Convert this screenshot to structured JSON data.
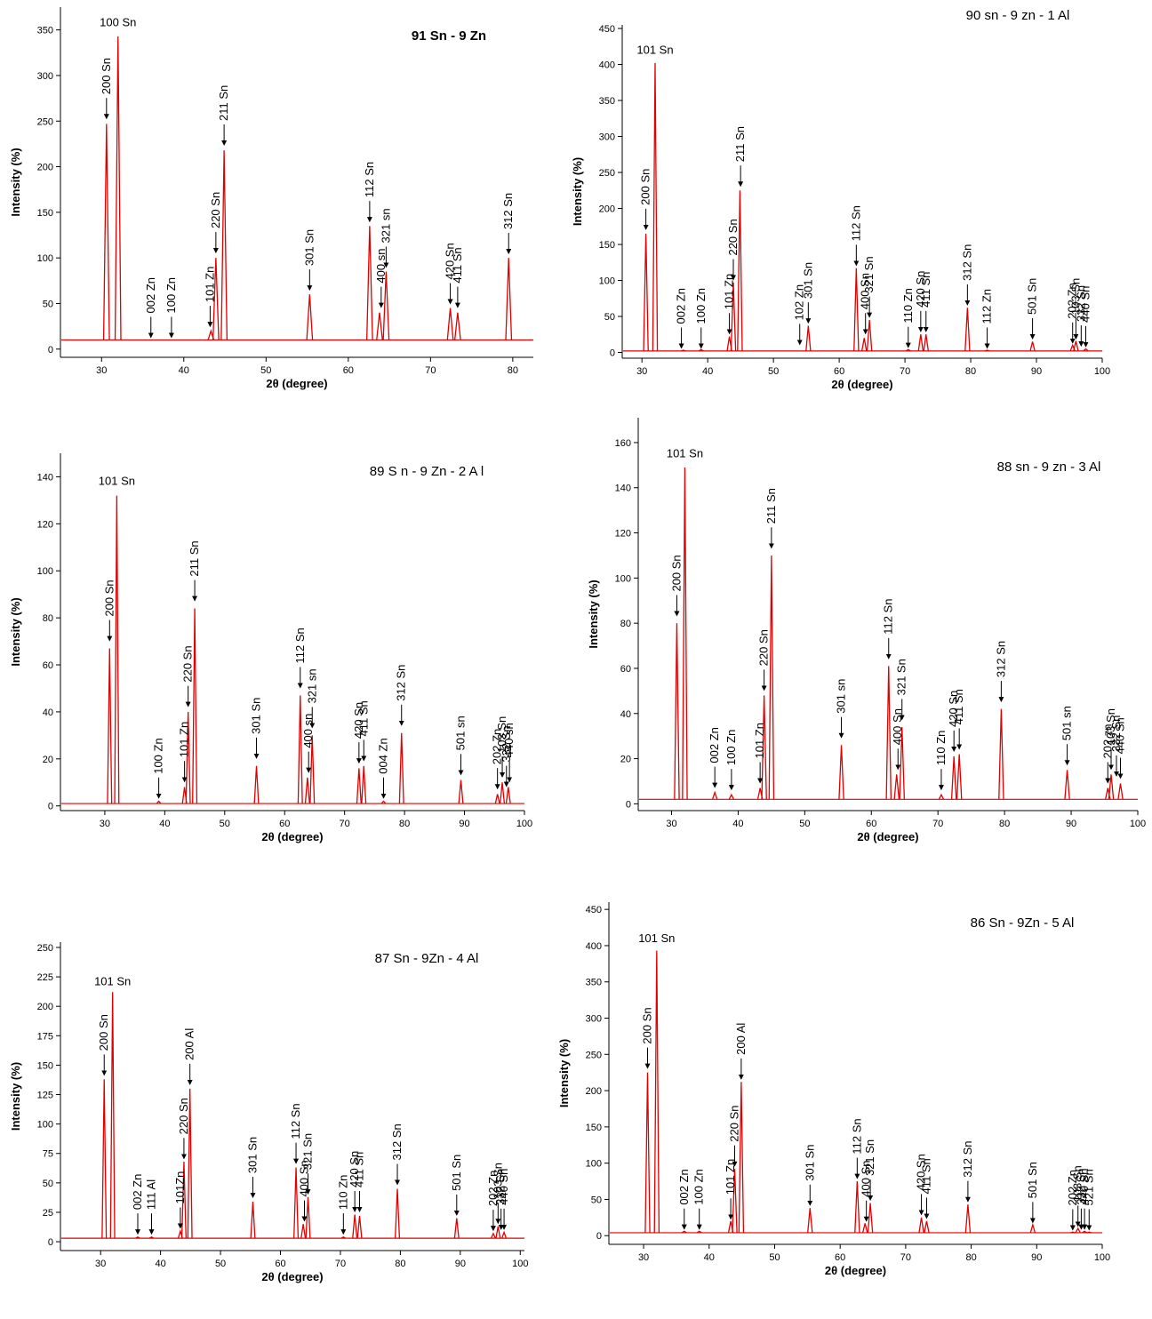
{
  "chart_data": [
    {
      "type": "line",
      "title": "91 Sn - 9 Zn",
      "xlabel": "2θ (degree)",
      "ylabel": "Intensity (%)",
      "color": "#e00000",
      "xlim": [
        25,
        82.5
      ],
      "ylim": [
        -9,
        375
      ],
      "xticks": [
        30,
        40,
        50,
        60,
        70,
        80
      ],
      "yticks": [
        0,
        50,
        100,
        150,
        200,
        250,
        300,
        350
      ],
      "baseline": 10,
      "x": [
        30.6,
        32.0,
        43.3,
        43.9,
        44.9,
        55.3,
        62.6,
        63.8,
        64.6,
        72.4,
        73.3,
        79.5
      ],
      "values": [
        247,
        343,
        20,
        100,
        218,
        60,
        135,
        40,
        85,
        45,
        40,
        100
      ],
      "peak_label": {
        "text": "100 Sn",
        "x": 32.0,
        "y": 350
      },
      "annotations": [
        {
          "text": "200 Sn",
          "x": 30.6,
          "y": 252
        },
        {
          "text": "002 Zn",
          "x": 36,
          "y": 12
        },
        {
          "text": "100 Zn",
          "x": 38.5,
          "y": 12
        },
        {
          "text": "101 Zn",
          "x": 43.2,
          "y": 24
        },
        {
          "text": "220 Sn",
          "x": 43.9,
          "y": 105
        },
        {
          "text": "211 Sn",
          "x": 44.9,
          "y": 223
        },
        {
          "text": "301 Sn",
          "x": 55.3,
          "y": 64
        },
        {
          "text": "112 Sn",
          "x": 62.6,
          "y": 139
        },
        {
          "text": "400 sn",
          "x": 64,
          "y": 45
        },
        {
          "text": "321 sn",
          "x": 64.6,
          "y": 89
        },
        {
          "text": "420 Sn",
          "x": 72.4,
          "y": 49
        },
        {
          "text": "411 Sn",
          "x": 73.3,
          "y": 45
        },
        {
          "text": "312 Sn",
          "x": 79.5,
          "y": 104
        }
      ]
    },
    {
      "type": "line",
      "title": "90 sn - 9 zn - 1 Al",
      "xlabel": "2θ (degree)",
      "ylabel": "Intensity (%)",
      "color": "#e00000",
      "xlim": [
        27,
        100
      ],
      "ylim": [
        -8,
        455
      ],
      "xticks": [
        30,
        40,
        50,
        60,
        70,
        80,
        90,
        100
      ],
      "yticks": [
        0,
        50,
        100,
        150,
        200,
        250,
        300,
        350,
        400,
        450
      ],
      "baseline": 2,
      "x": [
        30.6,
        32.0,
        36.3,
        39,
        43.3,
        43.9,
        44.9,
        55.3,
        62.6,
        63.8,
        64.6,
        70.5,
        72.4,
        73.2,
        79.5,
        82.5,
        89.4,
        95.5,
        96,
        97.5
      ],
      "values": [
        165,
        402,
        3,
        4,
        22,
        97,
        225,
        37,
        117,
        20,
        45,
        4,
        25,
        25,
        62,
        3,
        15,
        10,
        16,
        5
      ],
      "peak_label": {
        "text": "101 Sn",
        "x": 32.0,
        "y": 410
      },
      "annotations": [
        {
          "text": "200 Sn",
          "x": 30.6,
          "y": 170
        },
        {
          "text": "002 Zn",
          "x": 36,
          "y": 5
        },
        {
          "text": "100 Zn",
          "x": 39,
          "y": 5
        },
        {
          "text": "101 Zn",
          "x": 43.3,
          "y": 25
        },
        {
          "text": "220 Sn",
          "x": 43.9,
          "y": 100
        },
        {
          "text": "211 Sn",
          "x": 45,
          "y": 230
        },
        {
          "text": "102 Zn",
          "x": 54,
          "y": 10
        },
        {
          "text": "301 Sn",
          "x": 55.3,
          "y": 40
        },
        {
          "text": "112 Sn",
          "x": 62.6,
          "y": 120
        },
        {
          "text": "400 Sn",
          "x": 64,
          "y": 25
        },
        {
          "text": "321 Sn",
          "x": 64.6,
          "y": 48
        },
        {
          "text": "110 Zn",
          "x": 70.5,
          "y": 6
        },
        {
          "text": "420 Sn",
          "x": 72.4,
          "y": 28
        },
        {
          "text": "411 Sn",
          "x": 73.2,
          "y": 28
        },
        {
          "text": "312 Sn",
          "x": 79.5,
          "y": 65
        },
        {
          "text": "112 Zn",
          "x": 82.5,
          "y": 5
        },
        {
          "text": "501 Sn",
          "x": 89.4,
          "y": 18
        },
        {
          "text": "202 Zn",
          "x": 95.5,
          "y": 12
        },
        {
          "text": "103 Sn",
          "x": 96,
          "y": 18
        },
        {
          "text": "332 Sn",
          "x": 96.8,
          "y": 8
        },
        {
          "text": "440 Sn",
          "x": 97.5,
          "y": 7
        }
      ]
    },
    {
      "type": "line",
      "title": "89 S n - 9 Zn - 2 A l",
      "xlabel": "2θ (degree)",
      "ylabel": "Intensity (%)",
      "color": "#e00000",
      "xlim": [
        22.6,
        100
      ],
      "ylim": [
        -2,
        150
      ],
      "xticks": [
        30,
        40,
        50,
        60,
        70,
        80,
        90,
        100
      ],
      "yticks": [
        0,
        20,
        40,
        60,
        80,
        100,
        120,
        140
      ],
      "baseline": 1,
      "x": [
        30.8,
        32.0,
        39,
        43.3,
        43.9,
        45,
        55.3,
        62.6,
        63.8,
        64.6,
        72.4,
        73.2,
        76.5,
        79.5,
        89.4,
        95.5,
        96.3,
        97.3
      ],
      "values": [
        67,
        132,
        2,
        8,
        40,
        84,
        17,
        47,
        12,
        30,
        16,
        17,
        2,
        31,
        11,
        5,
        10,
        8
      ],
      "peak_label": {
        "text": "101 Sn",
        "x": 32.0,
        "y": 135
      },
      "annotations": [
        {
          "text": "200 Sn",
          "x": 30.8,
          "y": 70
        },
        {
          "text": "100 Zn",
          "x": 39,
          "y": 3
        },
        {
          "text": "101 Zn",
          "x": 43.3,
          "y": 10
        },
        {
          "text": "220 Sn",
          "x": 43.9,
          "y": 42
        },
        {
          "text": "211 Sn",
          "x": 45,
          "y": 87
        },
        {
          "text": "301 Sn",
          "x": 55.3,
          "y": 20
        },
        {
          "text": "112 Sn",
          "x": 62.6,
          "y": 50
        },
        {
          "text": "400 sn",
          "x": 64,
          "y": 14
        },
        {
          "text": "321 sn",
          "x": 64.6,
          "y": 33
        },
        {
          "text": "420 Sn",
          "x": 72.4,
          "y": 18
        },
        {
          "text": "411 Sn",
          "x": 73.2,
          "y": 19
        },
        {
          "text": "004 Zn",
          "x": 76.5,
          "y": 3
        },
        {
          "text": "312 Sn",
          "x": 79.5,
          "y": 34
        },
        {
          "text": "501 sn",
          "x": 89.4,
          "y": 13
        },
        {
          "text": "202 Zn",
          "x": 95.5,
          "y": 7
        },
        {
          "text": "103 Sn",
          "x": 96.3,
          "y": 12
        },
        {
          "text": "332 Sn",
          "x": 97,
          "y": 8
        },
        {
          "text": "440 sn",
          "x": 97.5,
          "y": 10
        }
      ]
    },
    {
      "type": "line",
      "title": "88 sn - 9 zn - 3 Al",
      "xlabel": "2θ (degree)",
      "ylabel": "Intensity (%)",
      "color": "#e00000",
      "xlim": [
        25,
        100
      ],
      "ylim": [
        -3,
        171
      ],
      "xticks": [
        30,
        40,
        50,
        60,
        70,
        80,
        90,
        100
      ],
      "yticks": [
        0,
        20,
        40,
        60,
        80,
        100,
        120,
        140,
        160
      ],
      "baseline": 2,
      "x": [
        30.8,
        32,
        36.5,
        39,
        43.3,
        43.9,
        45,
        55.5,
        62.6,
        63.8,
        64.6,
        70.5,
        72.4,
        73.2,
        79.5,
        89.4,
        95.5,
        96,
        97.4
      ],
      "values": [
        80,
        149,
        5,
        4,
        7,
        48,
        110,
        26,
        61,
        13,
        34,
        4,
        21,
        22,
        42,
        15,
        7,
        13,
        9
      ],
      "peak_label": {
        "text": "101 Sn",
        "x": 32,
        "y": 152
      },
      "annotations": [
        {
          "text": "200 Sn",
          "x": 30.8,
          "y": 83
        },
        {
          "text": "002 Zn",
          "x": 36.5,
          "y": 7
        },
        {
          "text": "100 Zn",
          "x": 39,
          "y": 6
        },
        {
          "text": "101 Zn",
          "x": 43.3,
          "y": 9
        },
        {
          "text": "220 Sn",
          "x": 43.9,
          "y": 50
        },
        {
          "text": "211 Sn",
          "x": 45,
          "y": 113
        },
        {
          "text": "301 sn",
          "x": 55.5,
          "y": 29
        },
        {
          "text": "112 Sn",
          "x": 62.6,
          "y": 64
        },
        {
          "text": "400 Sn",
          "x": 64,
          "y": 15
        },
        {
          "text": "321 Sn",
          "x": 64.6,
          "y": 37
        },
        {
          "text": "110 Zn",
          "x": 70.5,
          "y": 6
        },
        {
          "text": "420 Sn",
          "x": 72.4,
          "y": 23
        },
        {
          "text": "411 Sn",
          "x": 73.2,
          "y": 24
        },
        {
          "text": "312 Sn",
          "x": 79.5,
          "y": 45
        },
        {
          "text": "501 sn",
          "x": 89.4,
          "y": 17
        },
        {
          "text": "202 zn",
          "x": 95.5,
          "y": 9
        },
        {
          "text": "103 Sn",
          "x": 96,
          "y": 15
        },
        {
          "text": "332 Sn",
          "x": 96.8,
          "y": 12
        },
        {
          "text": "440 Sn",
          "x": 97.4,
          "y": 11
        }
      ]
    },
    {
      "type": "line",
      "title": "87 Sn - 9Zn - 4 Al",
      "xlabel": "2θ (degree)",
      "ylabel": "Intensity (%)",
      "color": "#e00000",
      "xlim": [
        23.3,
        100.7
      ],
      "ylim": [
        -7.5,
        254.5
      ],
      "xticks": [
        30,
        40,
        50,
        60,
        70,
        80,
        90,
        100
      ],
      "yticks": [
        0,
        25,
        50,
        75,
        100,
        125,
        150,
        175,
        200,
        225,
        250
      ],
      "baseline": 3,
      "x": [
        30.6,
        32,
        36.2,
        38.5,
        43.3,
        43.9,
        44.9,
        55.4,
        62.6,
        63.8,
        64.6,
        70.5,
        72.4,
        73.2,
        79.5,
        89.4,
        95.5,
        96.3,
        97.3
      ],
      "values": [
        138,
        212,
        4,
        4,
        9,
        68,
        130,
        34,
        63,
        15,
        38,
        4,
        23,
        22,
        45,
        20,
        7,
        13,
        8
      ],
      "peak_label": {
        "text": "101 Sn",
        "x": 32,
        "y": 215
      },
      "annotations": [
        {
          "text": "200 Sn",
          "x": 30.6,
          "y": 141
        },
        {
          "text": "002 Zn",
          "x": 36.2,
          "y": 6
        },
        {
          "text": "111 Al",
          "x": 38.5,
          "y": 6
        },
        {
          "text": "101Zn",
          "x": 43.3,
          "y": 11
        },
        {
          "text": "220 Sn",
          "x": 43.9,
          "y": 70
        },
        {
          "text": "200 Al",
          "x": 44.9,
          "y": 133
        },
        {
          "text": "301 Sn",
          "x": 55.4,
          "y": 37
        },
        {
          "text": "112 Sn",
          "x": 62.6,
          "y": 66
        },
        {
          "text": "400 Sn",
          "x": 64,
          "y": 17
        },
        {
          "text": "321 Sn",
          "x": 64.6,
          "y": 40
        },
        {
          "text": "110 Zn",
          "x": 70.5,
          "y": 6
        },
        {
          "text": "420 Sn",
          "x": 72.4,
          "y": 25
        },
        {
          "text": "411 Sn",
          "x": 73.2,
          "y": 25
        },
        {
          "text": "312 Sn",
          "x": 79.5,
          "y": 48
        },
        {
          "text": "501 Sn",
          "x": 89.4,
          "y": 22
        },
        {
          "text": "202 Zn",
          "x": 95.5,
          "y": 9
        },
        {
          "text": "103 Sn",
          "x": 96.3,
          "y": 15
        },
        {
          "text": "332 Sn",
          "x": 96.8,
          "y": 10
        },
        {
          "text": "440 Sn",
          "x": 97.3,
          "y": 10
        }
      ]
    },
    {
      "type": "line",
      "title": "86 Sn - 9Zn - 5 Al",
      "xlabel": "2θ (degree)",
      "ylabel": "Intensity (%)",
      "color": "#e00000",
      "xlim": [
        24.7,
        100
      ],
      "ylim": [
        -12,
        460
      ],
      "xticks": [
        30,
        40,
        50,
        60,
        70,
        80,
        90,
        100
      ],
      "yticks": [
        0,
        50,
        100,
        150,
        200,
        250,
        300,
        350,
        400,
        450
      ],
      "baseline": 4,
      "x": [
        30.6,
        32,
        36.2,
        38.5,
        43.3,
        43.9,
        44.9,
        55.4,
        62.6,
        63.8,
        64.6,
        72.4,
        73.2,
        79.5,
        89.4,
        95.5,
        96.3,
        97.3,
        98
      ],
      "values": [
        225,
        393,
        6,
        6,
        20,
        92,
        212,
        38,
        75,
        17,
        45,
        25,
        20,
        43,
        15,
        5,
        10,
        6,
        5
      ],
      "peak_label": {
        "text": "101 Sn",
        "x": 32,
        "y": 400
      },
      "annotations": [
        {
          "text": "200 Sn",
          "x": 30.6,
          "y": 230
        },
        {
          "text": "002 Zn",
          "x": 36.2,
          "y": 8
        },
        {
          "text": "100 Zn",
          "x": 38.5,
          "y": 8
        },
        {
          "text": "101 Zn",
          "x": 43.3,
          "y": 22
        },
        {
          "text": "220 Sn",
          "x": 43.9,
          "y": 95
        },
        {
          "text": "200 Al",
          "x": 44.9,
          "y": 215
        },
        {
          "text": "301 Sn",
          "x": 55.4,
          "y": 41
        },
        {
          "text": "112 Sn",
          "x": 62.6,
          "y": 78
        },
        {
          "text": "400 Sn",
          "x": 64,
          "y": 19
        },
        {
          "text": "321 Sn",
          "x": 64.6,
          "y": 48
        },
        {
          "text": "420 Sn",
          "x": 72.4,
          "y": 28
        },
        {
          "text": "411 Sn",
          "x": 73.2,
          "y": 23
        },
        {
          "text": "312 Sn",
          "x": 79.5,
          "y": 46
        },
        {
          "text": "501 Sn",
          "x": 89.4,
          "y": 17
        },
        {
          "text": "202 Zn",
          "x": 95.5,
          "y": 7
        },
        {
          "text": "103 Sn",
          "x": 96.3,
          "y": 12
        },
        {
          "text": "332 Sn",
          "x": 96.8,
          "y": 8
        },
        {
          "text": "440 Sn",
          "x": 97.3,
          "y": 8
        },
        {
          "text": "521 Sn",
          "x": 98,
          "y": 7
        }
      ]
    }
  ]
}
